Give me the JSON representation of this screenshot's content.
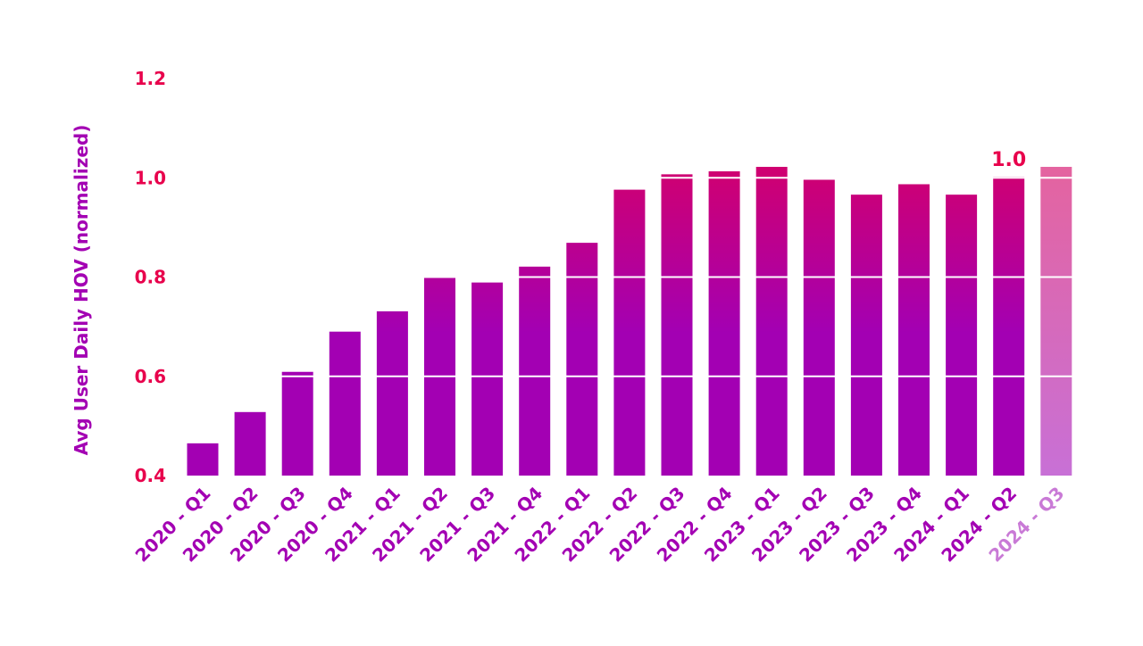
{
  "chart_data": {
    "type": "bar",
    "title": "",
    "xlabel": "",
    "ylabel": "Avg User Daily HOV (normalized)",
    "ylim": [
      0.4,
      1.2
    ],
    "yticks": [
      0.4,
      0.6,
      0.8,
      1.0,
      1.2
    ],
    "ytick_labels": [
      "0.4",
      "0.6",
      "0.8",
      "1.0",
      "1.2"
    ],
    "grid": "horizontal white lines over bars",
    "categories": [
      "2020 - Q1",
      "2020 - Q2",
      "2020 - Q3",
      "2020 - Q4",
      "2021 - Q1",
      "2021 - Q2",
      "2021 - Q3",
      "2021 - Q4",
      "2022 - Q1",
      "2022 - Q2",
      "2022 - Q3",
      "2022 - Q4",
      "2023 - Q1",
      "2023 - Q2",
      "2023 - Q3",
      "2023 - Q4",
      "2024 - Q1",
      "2024 - Q2",
      "2024 - Q3"
    ],
    "values": [
      0.465,
      0.528,
      0.609,
      0.69,
      0.731,
      0.8,
      0.789,
      0.821,
      0.869,
      0.976,
      1.007,
      1.013,
      1.022,
      0.996,
      0.966,
      0.987,
      0.966,
      1.002,
      1.022
    ],
    "highlighted": [
      false,
      false,
      false,
      false,
      false,
      false,
      false,
      false,
      false,
      false,
      false,
      false,
      false,
      false,
      false,
      false,
      false,
      false,
      true
    ],
    "annotations": [
      {
        "category": "2024 - Q2",
        "text": "1.0"
      }
    ],
    "colors": {
      "bottom": "#a300b3",
      "top": "#e8004c",
      "highlight_bottom": "#c870d6",
      "highlight_top": "#ec6090",
      "tick_label": "#e8004c",
      "axis_label": "#a300b3",
      "category_label": "#a300b3",
      "category_label_highlight": "#c97ad6",
      "grid": "#ffffff"
    }
  }
}
